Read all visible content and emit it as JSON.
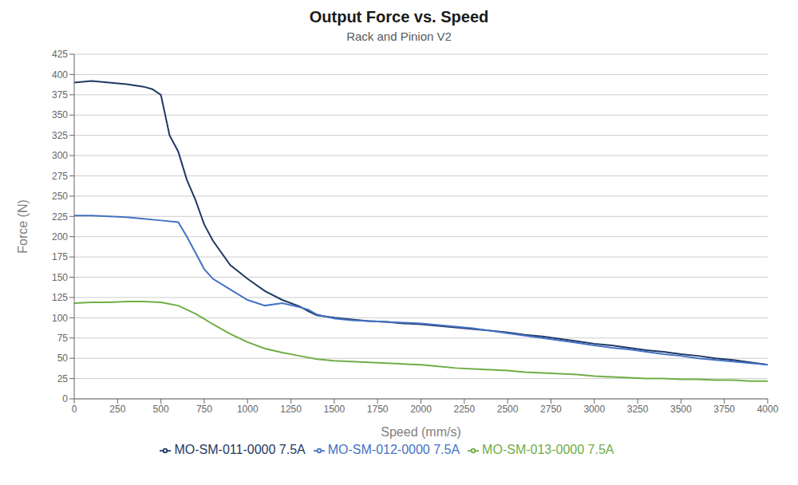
{
  "chart_data": {
    "type": "line",
    "title": "Output Force vs. Speed",
    "subtitle": "Rack and Pinion V2",
    "x_label": "Speed (mm/s)",
    "y_label": "Force (N)",
    "xlim": [
      0,
      4000
    ],
    "ylim": [
      0,
      425
    ],
    "xticks": [
      0,
      250,
      500,
      750,
      1000,
      1250,
      1500,
      1750,
      2000,
      2250,
      2500,
      2750,
      3000,
      3250,
      3500,
      3750,
      4000
    ],
    "yticks": [
      0,
      25,
      50,
      75,
      100,
      125,
      150,
      175,
      200,
      225,
      250,
      275,
      300,
      325,
      350,
      375,
      400,
      425
    ],
    "grid": "y",
    "legend": "bottom",
    "series": [
      {
        "name": "MO-SM-011-0000 7.5A",
        "color": "#1f3864",
        "x": [
          0,
          100,
          200,
          300,
          400,
          450,
          500,
          550,
          600,
          650,
          700,
          750,
          800,
          900,
          1000,
          1100,
          1200,
          1300,
          1350,
          1400,
          1500,
          1600,
          1700,
          1800,
          1900,
          2000,
          2100,
          2200,
          2300,
          2400,
          2500,
          2600,
          2700,
          2800,
          2900,
          3000,
          3100,
          3200,
          3300,
          3400,
          3500,
          3600,
          3700,
          3800,
          3900,
          4000
        ],
        "values": [
          390,
          392,
          390,
          388,
          385,
          382,
          375,
          325,
          305,
          270,
          245,
          215,
          195,
          165,
          148,
          133,
          122,
          114,
          108,
          103,
          100,
          98,
          96,
          95,
          93,
          92,
          90,
          88,
          86,
          84,
          82,
          79,
          77,
          74,
          71,
          68,
          66,
          63,
          60,
          58,
          55,
          53,
          50,
          48,
          45,
          42
        ]
      },
      {
        "name": "MO-SM-012-0000 7.5A",
        "color": "#4472c4",
        "x": [
          0,
          100,
          200,
          300,
          400,
          500,
          600,
          650,
          700,
          750,
          800,
          900,
          1000,
          1100,
          1200,
          1300,
          1350,
          1400,
          1500,
          1600,
          1700,
          1800,
          1900,
          2000,
          2100,
          2200,
          2300,
          2400,
          2500,
          2600,
          2700,
          2800,
          2900,
          3000,
          3100,
          3200,
          3300,
          3400,
          3500,
          3600,
          3700,
          3800,
          3900,
          4000
        ],
        "values": [
          226,
          226,
          225,
          224,
          222,
          220,
          218,
          200,
          180,
          160,
          148,
          135,
          122,
          115,
          118,
          113,
          110,
          104,
          99,
          97,
          96,
          95,
          94,
          93,
          91,
          89,
          87,
          84,
          81,
          78,
          75,
          72,
          69,
          66,
          63,
          61,
          58,
          55,
          53,
          50,
          48,
          46,
          44,
          42
        ]
      },
      {
        "name": "MO-SM-013-0000 7.5A",
        "color": "#70ad47",
        "x": [
          0,
          100,
          200,
          300,
          400,
          500,
          600,
          700,
          800,
          900,
          1000,
          1100,
          1200,
          1300,
          1400,
          1500,
          1600,
          1700,
          1800,
          1900,
          2000,
          2100,
          2200,
          2300,
          2400,
          2500,
          2600,
          2700,
          2800,
          2900,
          3000,
          3100,
          3200,
          3300,
          3400,
          3500,
          3600,
          3700,
          3800,
          3900,
          4000
        ],
        "values": [
          118,
          119,
          119,
          120,
          120,
          119,
          115,
          105,
          92,
          80,
          70,
          62,
          57,
          53,
          49,
          47,
          46,
          45,
          44,
          43,
          42,
          40,
          38,
          37,
          36,
          35,
          33,
          32,
          31,
          30,
          28,
          27,
          26,
          25,
          25,
          24,
          24,
          23,
          23,
          22,
          22
        ]
      }
    ]
  }
}
